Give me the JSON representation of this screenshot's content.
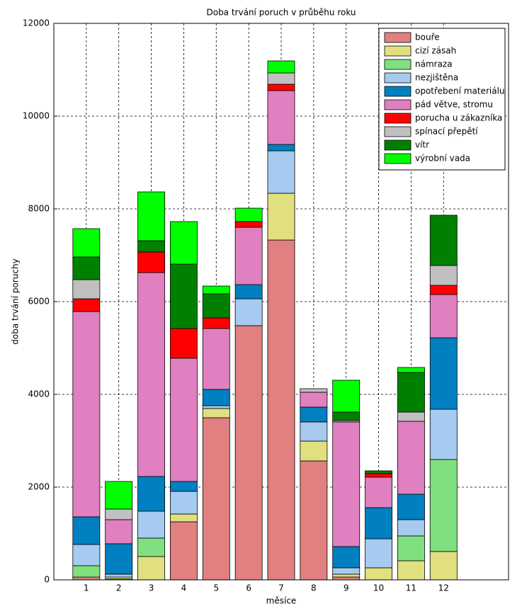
{
  "chart_data": {
    "type": "stacked_bar",
    "title": "Doba trvání poruch v průběhu roku",
    "x_label": "měsíce",
    "y_label": "doba trvání poruchy",
    "x": [
      1,
      2,
      3,
      4,
      5,
      6,
      7,
      8,
      9,
      10,
      11,
      12
    ],
    "xlim": [
      0,
      14
    ],
    "xticks": [
      1,
      2,
      3,
      4,
      5,
      6,
      7,
      8,
      9,
      10,
      11,
      12
    ],
    "ylim": [
      0,
      12000
    ],
    "yticks": [
      0,
      2000,
      4000,
      6000,
      8000,
      10000,
      12000
    ],
    "grid": true,
    "legend": "upper right",
    "series": [
      {
        "name": "bouře",
        "color": "#e08080",
        "values": [
          60,
          20,
          0,
          1252,
          3496,
          5481,
          7328,
          2565,
          61,
          0,
          0,
          0
        ]
      },
      {
        "name": "cizí zásah",
        "color": "#e0e080",
        "values": [
          0,
          40,
          504,
          168,
          199,
          0,
          1008,
          427,
          61,
          260,
          412,
          611
        ]
      },
      {
        "name": "námraza",
        "color": "#80e080",
        "values": [
          245,
          0,
          397,
          0,
          0,
          0,
          0,
          0,
          0,
          0,
          535,
          1984
        ]
      },
      {
        "name": "nezjištěna",
        "color": "#a6caf0",
        "values": [
          458,
          62,
          580,
          488,
          61,
          580,
          916,
          413,
          138,
          625,
          351,
          1084
        ]
      },
      {
        "name": "opotřebení materiálu",
        "color": "#0080c0",
        "values": [
          596,
          657,
          748,
          214,
          351,
          305,
          137,
          320,
          458,
          672,
          549,
          1542
        ]
      },
      {
        "name": "pád větve, stromu",
        "color": "#e080c0",
        "values": [
          4427,
          519,
          4397,
          2657,
          1313,
          1237,
          1161,
          321,
          2687,
          657,
          1573,
          932
        ]
      },
      {
        "name": "porucha u zákazníka",
        "color": "#ff0000",
        "values": [
          275,
          0,
          443,
          641,
          229,
          122,
          137,
          0,
          0,
          76,
          0,
          198
        ]
      },
      {
        "name": "spínací přepětí",
        "color": "#c0c0c0",
        "values": [
          412,
          229,
          0,
          0,
          0,
          0,
          244,
          76,
          30,
          0,
          198,
          428
        ]
      },
      {
        "name": "vítr",
        "color": "#008000",
        "values": [
          489,
          0,
          244,
          1389,
          519,
          0,
          0,
          0,
          183,
          61,
          855,
          1084
        ]
      },
      {
        "name": "výrobní vada",
        "color": "#00ff00",
        "values": [
          611,
          595,
          1053,
          916,
          168,
          290,
          260,
          0,
          687,
          0,
          107,
          0
        ]
      }
    ]
  }
}
